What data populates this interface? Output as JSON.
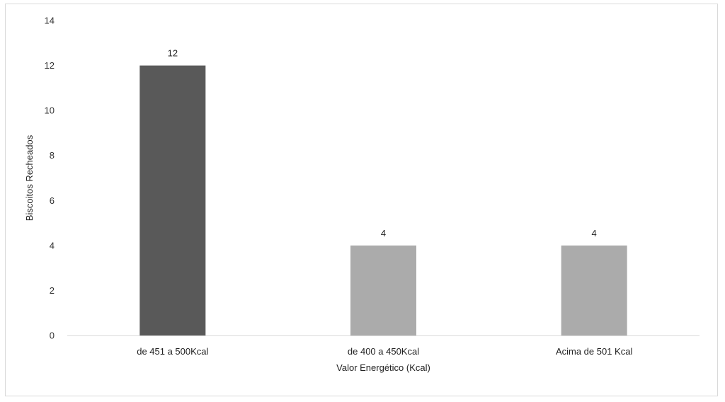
{
  "chart_data": {
    "type": "bar",
    "categories": [
      "de 451 a 500Kcal",
      "de 400 a 450Kcal",
      "Acima de 501 Kcal"
    ],
    "values": [
      12,
      4,
      4
    ],
    "data_labels": [
      "12",
      "4",
      "4"
    ],
    "bar_colors": [
      "#595959",
      "#ababab",
      "#ababab"
    ],
    "title": "",
    "xlabel": "Valor Energético (Kcal)",
    "ylabel": "Biscoitos Recheados",
    "ylim": [
      0,
      14
    ],
    "yticks": [
      0,
      2,
      4,
      6,
      8,
      10,
      12,
      14
    ],
    "grid": false,
    "legend": "none"
  }
}
